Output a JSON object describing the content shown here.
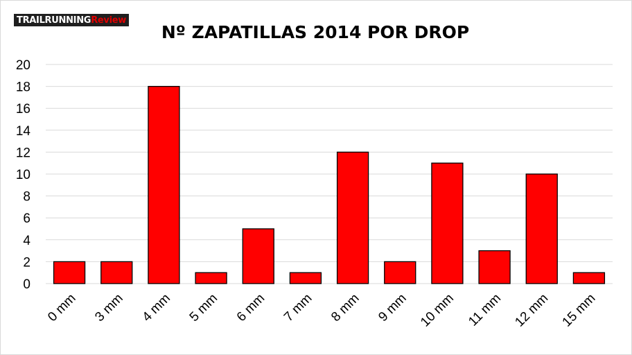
{
  "logo": {
    "part1": "TRAILRUNNING",
    "part2": "Review"
  },
  "colors": {
    "bar": "#ff0000",
    "bar_stroke": "#000000",
    "grid": "#d9d9d9",
    "text": "#000000"
  },
  "chart_data": {
    "type": "bar",
    "title": "Nº ZAPATILLAS 2014 POR DROP",
    "xlabel": "",
    "ylabel": "",
    "categories": [
      "0 mm",
      "3 mm",
      "4 mm",
      "5 mm",
      "6 mm",
      "7 mm",
      "8 mm",
      "9 mm",
      "10 mm",
      "11 mm",
      "12 mm",
      "15 mm"
    ],
    "values": [
      2,
      2,
      18,
      1,
      5,
      1,
      12,
      2,
      11,
      3,
      10,
      1
    ],
    "ylim": [
      0,
      20
    ],
    "yticks": [
      0,
      2,
      4,
      6,
      8,
      10,
      12,
      14,
      16,
      18,
      20
    ],
    "grid": true,
    "legend": "none"
  }
}
